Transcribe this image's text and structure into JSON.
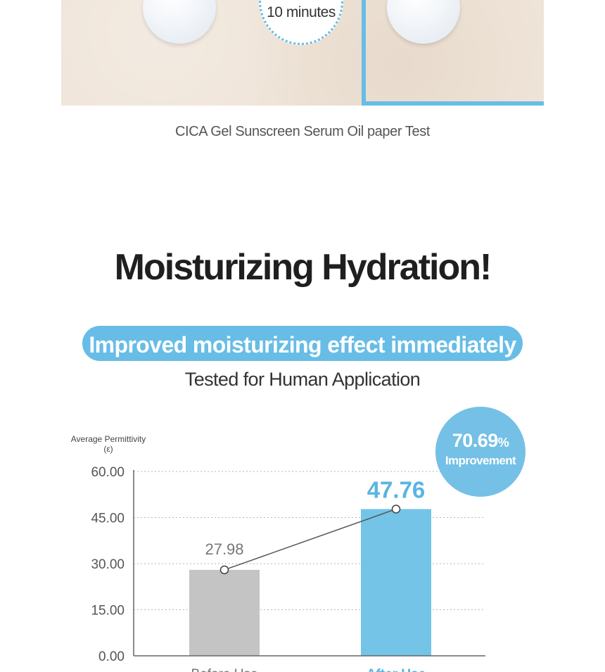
{
  "photo_section": {
    "timer_label": "10 minutes",
    "caption": "CICA Gel Sunscreen Serum Oil paper Test",
    "accent_color": "#67bde6"
  },
  "headline": "Moisturizing Hydration!",
  "pill": {
    "text": "Improved moisturizing effect immediately",
    "color": "#67bde6"
  },
  "subtitle": "Tested for Human Application",
  "badge": {
    "value": "70.69",
    "unit": "%",
    "label": "Improvement",
    "color": "#74c0e6"
  },
  "chart_data": {
    "type": "bar",
    "ylabel": "Average Permittivity",
    "ylabel_unit": "(ε)",
    "ylim": [
      0,
      60
    ],
    "ticks": [
      "0.00",
      "15.00",
      "30.00",
      "45.00",
      "60.00"
    ],
    "grid": true,
    "categories": [
      "Before Use",
      "After Use"
    ],
    "values": [
      27.98,
      47.76
    ],
    "value_labels": [
      "27.98",
      "47.76"
    ],
    "colors": [
      "#c4c4c4",
      "#74c4e8"
    ],
    "label_colors": [
      "#777777",
      "#5ab4e2"
    ],
    "connecting_line": true
  }
}
